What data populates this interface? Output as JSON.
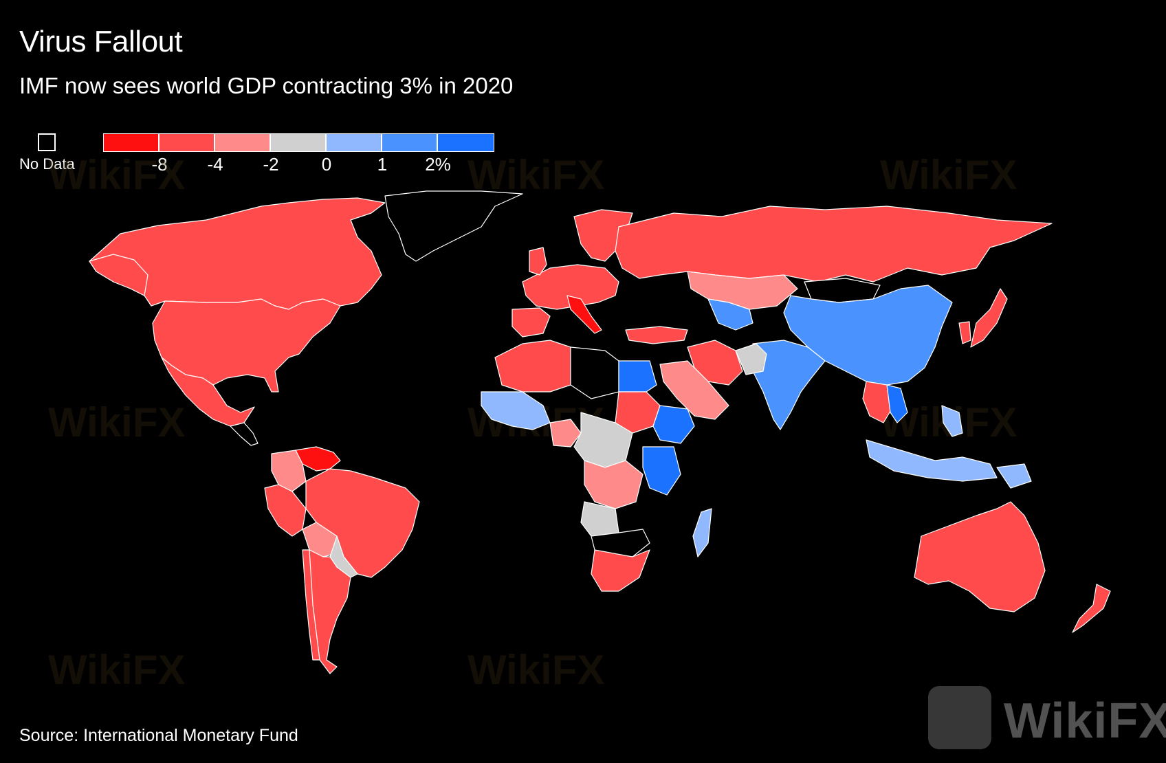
{
  "title": "Virus Fallout",
  "subtitle": "IMF now sees world GDP contracting 3% in 2020",
  "legend": {
    "no_data_label": "No Data",
    "colors": [
      "#ff1010",
      "#ff4b4b",
      "#ff8a8a",
      "#d0d0d0",
      "#8fb8ff",
      "#4a93ff",
      "#1a72ff"
    ],
    "ticks": [
      "-8",
      "-4",
      "-2",
      "0",
      "1",
      "2%"
    ]
  },
  "source": "Source: International Monetary Fund",
  "watermark": "WikiFX"
}
